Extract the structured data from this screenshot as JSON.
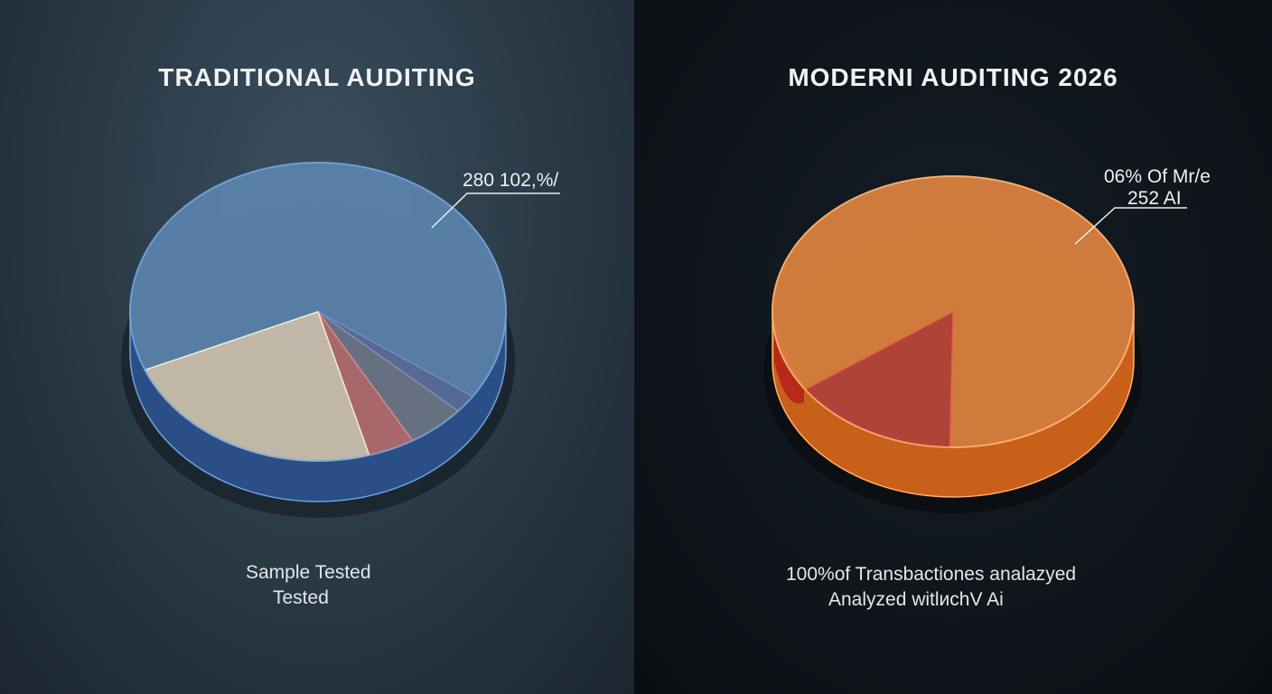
{
  "chart_data": [
    {
      "type": "pie",
      "title": "TRADITIONAL AUDITING",
      "annotation": "280 102,%/",
      "caption": [
        "Sample Tested",
        "Tested"
      ],
      "slices": [
        {
          "value": 66,
          "color": "#5a82aa"
        },
        {
          "value": 2,
          "color": "#5a6d9a"
        },
        {
          "value": 5,
          "color": "#6a7486"
        },
        {
          "value": 4,
          "color": "#b06c6c"
        },
        {
          "value": 23,
          "color": "#c9bfae"
        }
      ]
    },
    {
      "type": "pie",
      "title": "MODERNI AUDITING 2026",
      "annotation": [
        "06% Of Mr/e",
        "252 AI"
      ],
      "caption": [
        "100%of Transbactiones analazyed",
        "Analyzed witlиchV Ai"
      ],
      "slices": [
        {
          "value": 85,
          "color": "#d9813f"
        },
        {
          "value": 15,
          "color": "#b8463a"
        }
      ]
    }
  ]
}
